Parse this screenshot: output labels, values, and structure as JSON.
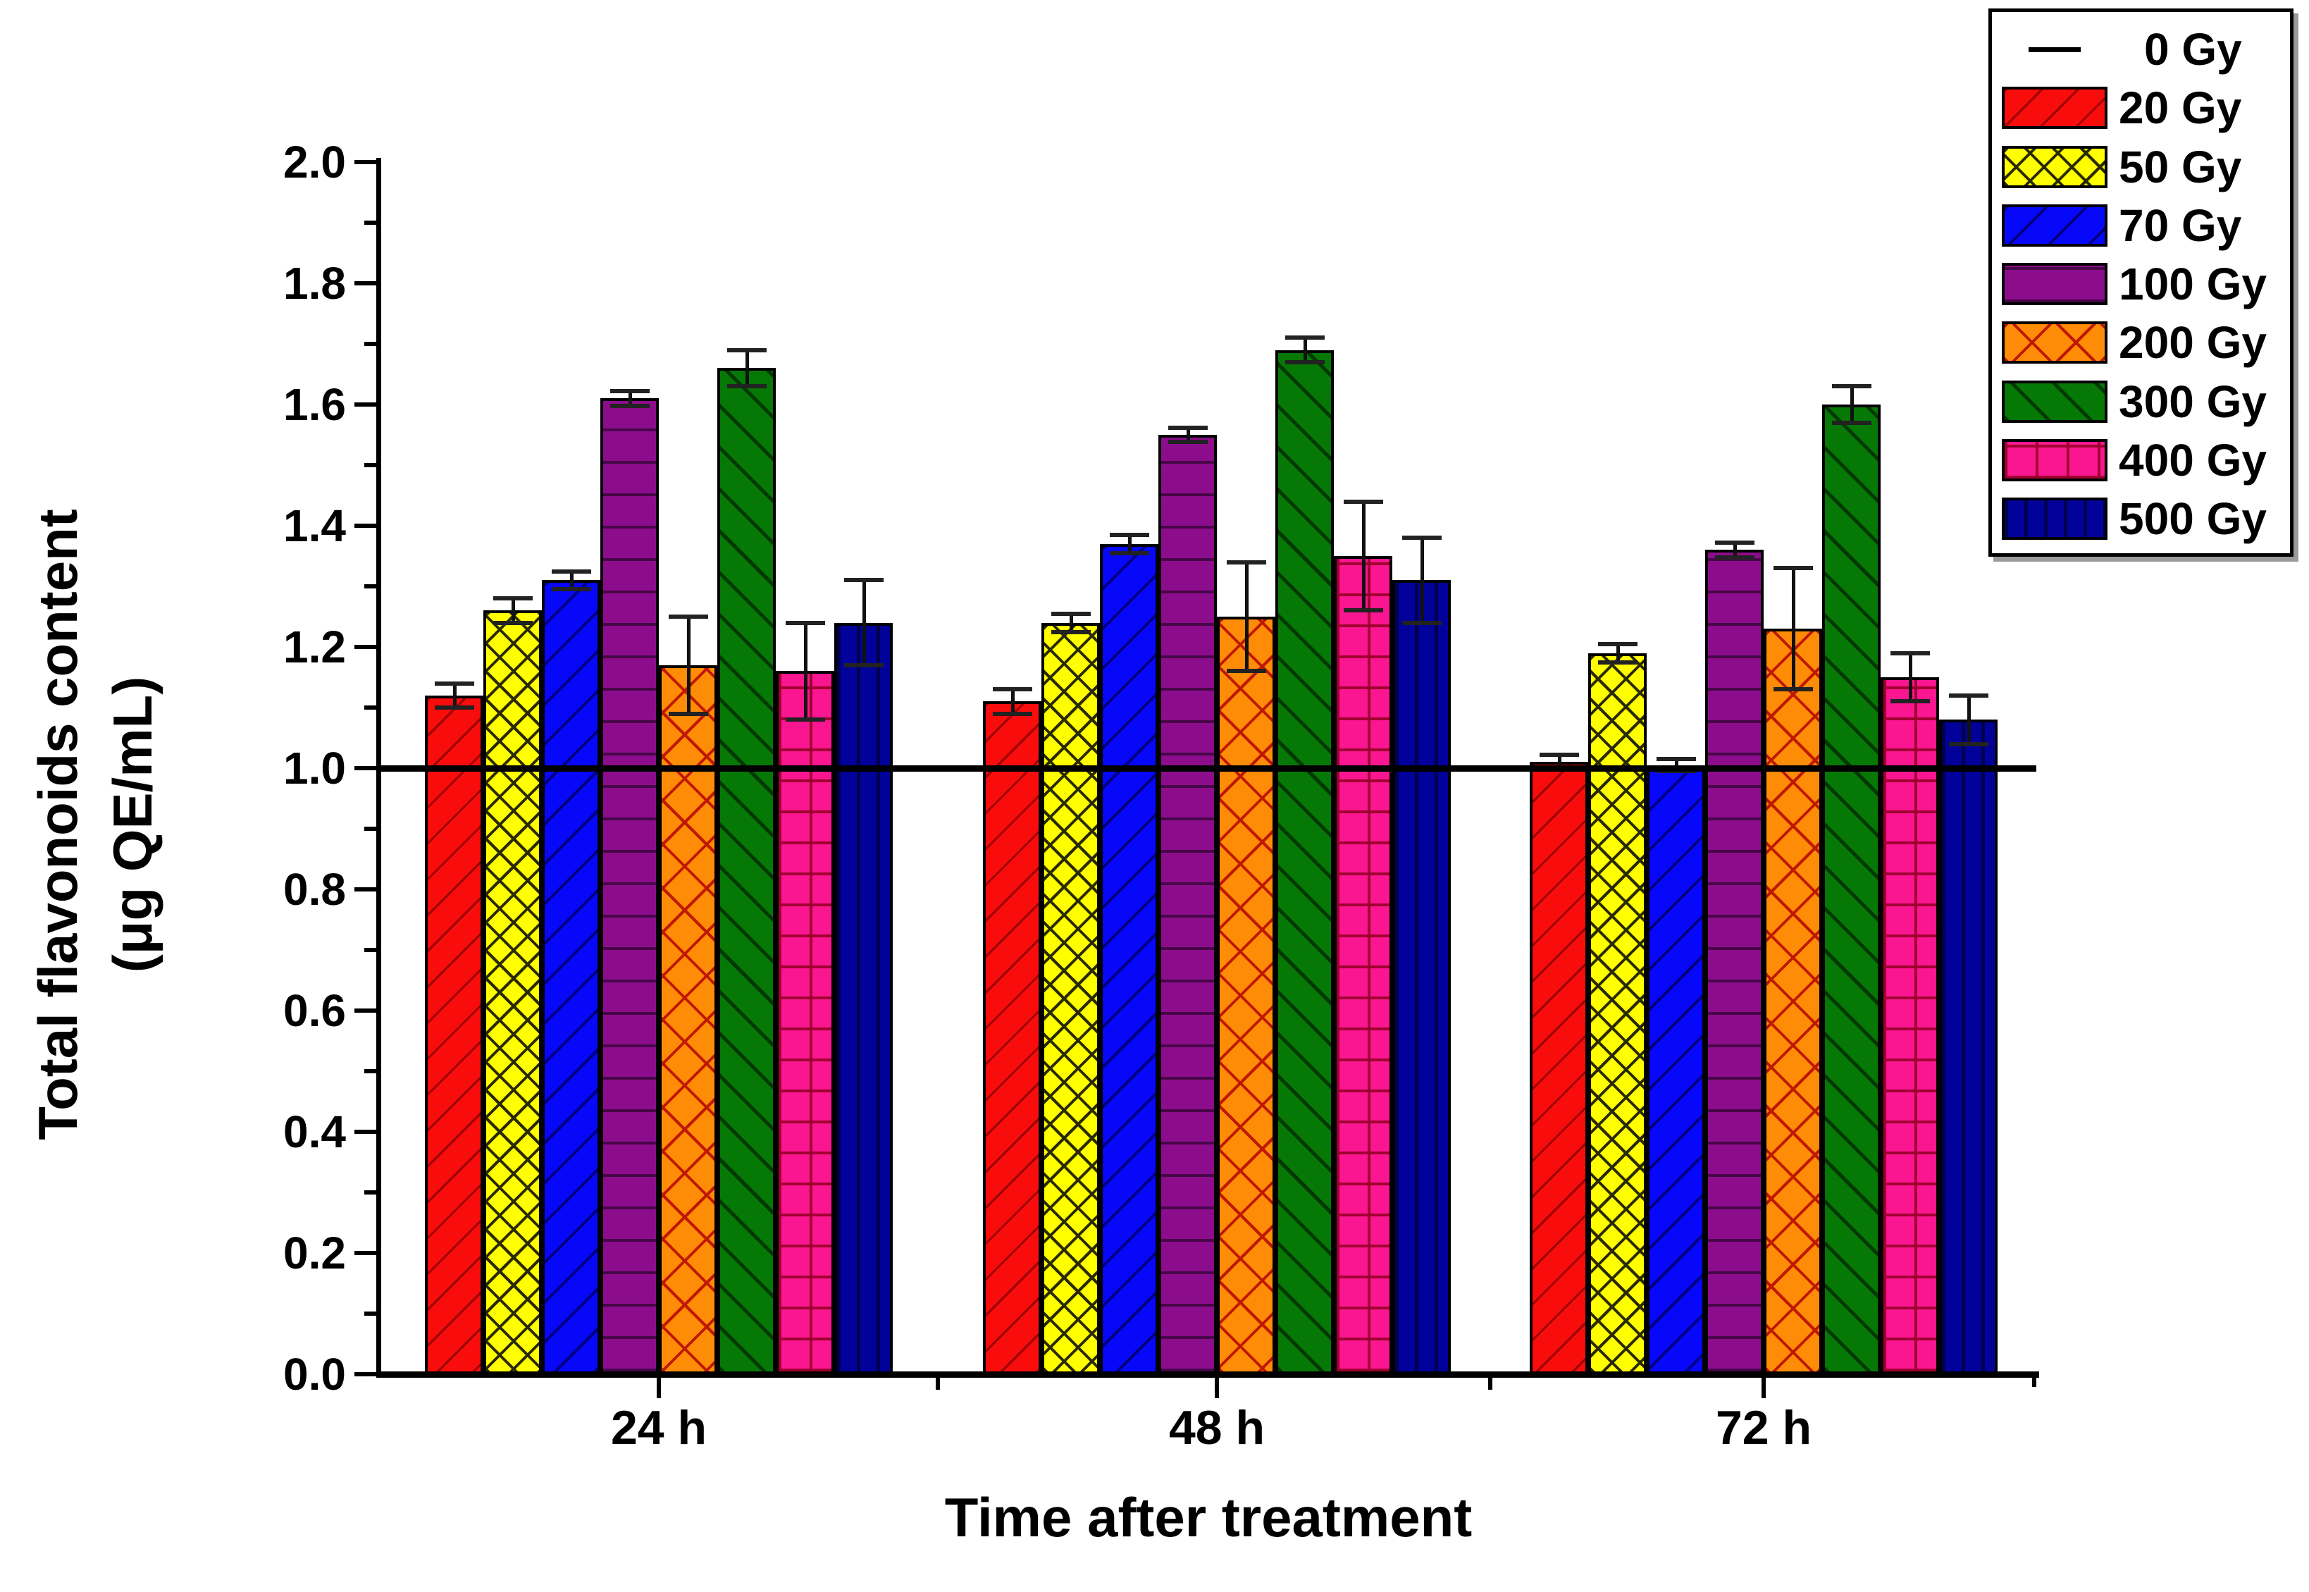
{
  "figure": {
    "background": "#ffffff",
    "x_title": "Time after treatment",
    "y_title_line1": "Total flavonoids content",
    "y_title_line2": "(μg QE/mL)"
  },
  "y_axis": {
    "min": 0.0,
    "max": 2.0,
    "major_step": 0.2,
    "minor_step": 0.1,
    "tick_labels": [
      "0.0",
      "0.2",
      "0.4",
      "0.6",
      "0.8",
      "1.0",
      "1.2",
      "1.4",
      "1.6",
      "1.8",
      "2.0"
    ]
  },
  "x_axis": {
    "categories": [
      "24 h",
      "48 h",
      "72 h"
    ]
  },
  "chart_data": {
    "type": "bar",
    "title": "",
    "xlabel": "Time after treatment",
    "ylabel": "Total flavonoids content (μg QE/mL)",
    "ylim": [
      0.0,
      2.0
    ],
    "grid": false,
    "legend_position": "top-right",
    "categories": [
      "24 h",
      "48 h",
      "72 h"
    ],
    "reference_line": {
      "name": "0 Gy",
      "value": 1.0,
      "color": "#000000"
    },
    "series": [
      {
        "name": "20 Gy",
        "color": "#f80c0c",
        "hatch": "diag-up",
        "hatch_color": "#9b0404",
        "hatch_line": 3,
        "hatch_gap": 36,
        "values": [
          1.12,
          1.11,
          1.01
        ],
        "errors": [
          0.02,
          0.02,
          0.012
        ]
      },
      {
        "name": "50 Gy",
        "color": "#ffff00",
        "hatch": "cross-diag",
        "hatch_color": "#2a2a00",
        "hatch_line": 4,
        "hatch_gap": 28,
        "values": [
          1.26,
          1.24,
          1.19
        ],
        "errors": [
          0.02,
          0.015,
          0.015
        ]
      },
      {
        "name": "70 Gy",
        "color": "#0707fa",
        "hatch": "diag-up",
        "hatch_color": "#000080",
        "hatch_line": 4,
        "hatch_gap": 40,
        "values": [
          1.31,
          1.37,
          1.005
        ],
        "errors": [
          0.015,
          0.015,
          0.01
        ]
      },
      {
        "name": "100 Gy",
        "color": "#8c0d8c",
        "hatch": "horizontal",
        "hatch_color": "#470647",
        "hatch_line": 4,
        "hatch_gap": 46,
        "values": [
          1.61,
          1.55,
          1.36
        ],
        "errors": [
          0.012,
          0.012,
          0.012
        ]
      },
      {
        "name": "200 Gy",
        "color": "#ff8c07",
        "hatch": "cross-diag",
        "hatch_color": "#c01800",
        "hatch_line": 4,
        "hatch_gap": 44,
        "values": [
          1.17,
          1.25,
          1.23
        ],
        "errors": [
          0.08,
          0.09,
          0.1
        ]
      },
      {
        "name": "300 Gy",
        "color": "#067806",
        "hatch": "diag-down",
        "hatch_color": "#023802",
        "hatch_line": 5,
        "hatch_gap": 42,
        "values": [
          1.66,
          1.69,
          1.6
        ],
        "errors": [
          0.03,
          0.02,
          0.03
        ]
      },
      {
        "name": "400 Gy",
        "color": "#fa1690",
        "hatch": "grid",
        "hatch_color": "#a00030",
        "hatch_line": 4,
        "hatch_gap": 44,
        "values": [
          1.16,
          1.35,
          1.15
        ],
        "errors": [
          0.08,
          0.09,
          0.04
        ]
      },
      {
        "name": "500 Gy",
        "color": "#02029b",
        "hatch": "vertical",
        "hatch_color": "#00004f",
        "hatch_line": 5,
        "hatch_gap": 28,
        "values": [
          1.24,
          1.31,
          1.08
        ],
        "errors": [
          0.07,
          0.07,
          0.04
        ]
      }
    ]
  },
  "legend": {
    "items": [
      "0 Gy",
      "20 Gy",
      "50 Gy",
      "70 Gy",
      "100 Gy",
      "200 Gy",
      "300 Gy",
      "400 Gy",
      "500 Gy"
    ]
  }
}
